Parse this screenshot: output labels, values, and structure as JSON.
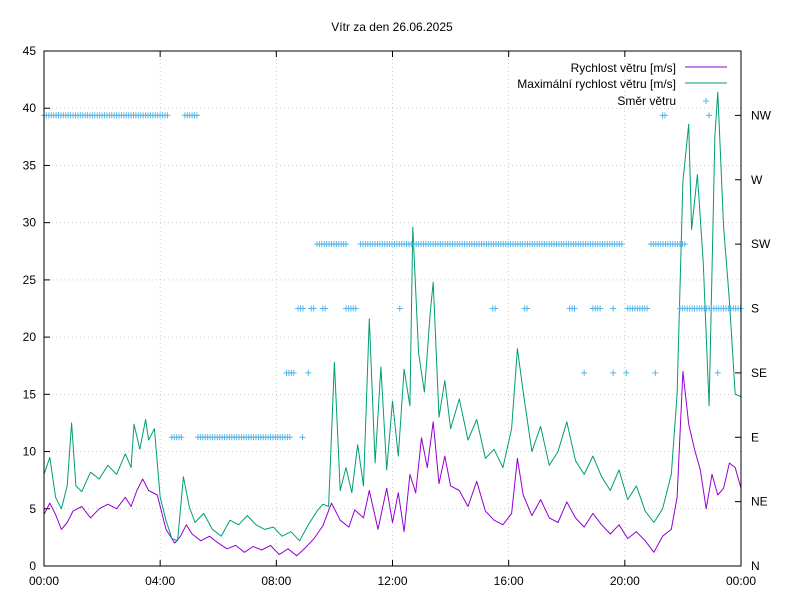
{
  "chart_data": {
    "type": "line",
    "title": "Vítr za den 26.06.2025",
    "x_ticks": [
      "00:00",
      "04:00",
      "08:00",
      "12:00",
      "16:00",
      "20:00",
      "00:00"
    ],
    "xlim_hours": [
      0,
      24
    ],
    "y_ticks": [
      "0",
      "5",
      "10",
      "15",
      "20",
      "25",
      "30",
      "35",
      "40",
      "45"
    ],
    "ylim": [
      0,
      45
    ],
    "y2_ticks": [
      "N",
      "NE",
      "E",
      "SE",
      "S",
      "SW",
      "W",
      "NW"
    ],
    "grid": true,
    "legend_position": "top-right",
    "series": [
      {
        "name": "Rychlost větru [m/s]",
        "color": "#9400d3",
        "points": [
          [
            0,
            4.5
          ],
          [
            0.2,
            5.5
          ],
          [
            0.4,
            4.5
          ],
          [
            0.6,
            3.2
          ],
          [
            0.8,
            3.8
          ],
          [
            1.0,
            4.8
          ],
          [
            1.3,
            5.2
          ],
          [
            1.6,
            4.2
          ],
          [
            1.9,
            5.0
          ],
          [
            2.2,
            5.4
          ],
          [
            2.5,
            5.0
          ],
          [
            2.8,
            6.0
          ],
          [
            3.0,
            5.2
          ],
          [
            3.2,
            6.6
          ],
          [
            3.4,
            7.6
          ],
          [
            3.6,
            6.6
          ],
          [
            3.9,
            6.2
          ],
          [
            4.2,
            3.2
          ],
          [
            4.5,
            2.0
          ],
          [
            4.7,
            2.6
          ],
          [
            4.9,
            3.6
          ],
          [
            5.1,
            2.8
          ],
          [
            5.4,
            2.2
          ],
          [
            5.7,
            2.6
          ],
          [
            6.0,
            2.0
          ],
          [
            6.3,
            1.5
          ],
          [
            6.6,
            1.8
          ],
          [
            6.9,
            1.2
          ],
          [
            7.2,
            1.7
          ],
          [
            7.5,
            1.4
          ],
          [
            7.8,
            1.8
          ],
          [
            8.1,
            1.0
          ],
          [
            8.4,
            1.5
          ],
          [
            8.7,
            0.9
          ],
          [
            9.0,
            1.6
          ],
          [
            9.3,
            2.4
          ],
          [
            9.6,
            3.5
          ],
          [
            9.9,
            5.5
          ],
          [
            10.2,
            4.0
          ],
          [
            10.5,
            3.4
          ],
          [
            10.7,
            4.9
          ],
          [
            11.0,
            4.2
          ],
          [
            11.2,
            6.6
          ],
          [
            11.5,
            3.2
          ],
          [
            11.8,
            6.8
          ],
          [
            12.0,
            3.8
          ],
          [
            12.2,
            6.4
          ],
          [
            12.4,
            3.0
          ],
          [
            12.6,
            8.0
          ],
          [
            12.8,
            6.4
          ],
          [
            13.0,
            11.2
          ],
          [
            13.2,
            8.6
          ],
          [
            13.4,
            12.6
          ],
          [
            13.6,
            7.2
          ],
          [
            13.8,
            9.6
          ],
          [
            14.0,
            7.0
          ],
          [
            14.3,
            6.6
          ],
          [
            14.6,
            5.2
          ],
          [
            14.9,
            7.4
          ],
          [
            15.2,
            4.8
          ],
          [
            15.5,
            4.0
          ],
          [
            15.8,
            3.6
          ],
          [
            16.1,
            4.6
          ],
          [
            16.3,
            9.4
          ],
          [
            16.5,
            6.2
          ],
          [
            16.8,
            4.4
          ],
          [
            17.1,
            5.8
          ],
          [
            17.4,
            4.2
          ],
          [
            17.7,
            3.8
          ],
          [
            18.0,
            5.6
          ],
          [
            18.3,
            4.2
          ],
          [
            18.6,
            3.4
          ],
          [
            18.9,
            4.6
          ],
          [
            19.2,
            3.6
          ],
          [
            19.5,
            2.8
          ],
          [
            19.8,
            3.6
          ],
          [
            20.1,
            2.4
          ],
          [
            20.4,
            3.0
          ],
          [
            20.7,
            2.2
          ],
          [
            21.0,
            1.2
          ],
          [
            21.3,
            2.6
          ],
          [
            21.6,
            3.2
          ],
          [
            21.8,
            6.0
          ],
          [
            22.0,
            17.0
          ],
          [
            22.2,
            12.4
          ],
          [
            22.4,
            10.2
          ],
          [
            22.6,
            8.4
          ],
          [
            22.8,
            5.0
          ],
          [
            23.0,
            8.0
          ],
          [
            23.2,
            6.2
          ],
          [
            23.4,
            6.8
          ],
          [
            23.6,
            9.0
          ],
          [
            23.8,
            8.6
          ],
          [
            24.0,
            6.8
          ]
        ]
      },
      {
        "name": "Maximální rychlost větru [m/s]",
        "color": "#009e73",
        "points": [
          [
            0,
            8.0
          ],
          [
            0.2,
            9.5
          ],
          [
            0.4,
            6.0
          ],
          [
            0.6,
            5.0
          ],
          [
            0.8,
            7.0
          ],
          [
            0.95,
            12.5
          ],
          [
            1.1,
            7.0
          ],
          [
            1.3,
            6.5
          ],
          [
            1.6,
            8.2
          ],
          [
            1.9,
            7.6
          ],
          [
            2.2,
            8.8
          ],
          [
            2.5,
            8.0
          ],
          [
            2.8,
            9.8
          ],
          [
            3.0,
            8.6
          ],
          [
            3.1,
            12.4
          ],
          [
            3.3,
            10.2
          ],
          [
            3.5,
            12.8
          ],
          [
            3.6,
            11.0
          ],
          [
            3.8,
            12.0
          ],
          [
            4.0,
            6.0
          ],
          [
            4.2,
            4.0
          ],
          [
            4.4,
            2.4
          ],
          [
            4.6,
            2.2
          ],
          [
            4.8,
            7.8
          ],
          [
            5.0,
            5.2
          ],
          [
            5.2,
            3.8
          ],
          [
            5.5,
            4.6
          ],
          [
            5.8,
            3.2
          ],
          [
            6.1,
            2.6
          ],
          [
            6.4,
            4.0
          ],
          [
            6.7,
            3.6
          ],
          [
            7.0,
            4.4
          ],
          [
            7.3,
            3.6
          ],
          [
            7.6,
            3.2
          ],
          [
            7.9,
            3.4
          ],
          [
            8.2,
            2.6
          ],
          [
            8.5,
            3.0
          ],
          [
            8.8,
            2.2
          ],
          [
            9.1,
            3.6
          ],
          [
            9.4,
            4.8
          ],
          [
            9.6,
            5.4
          ],
          [
            9.8,
            5.2
          ],
          [
            10.0,
            17.8
          ],
          [
            10.2,
            6.6
          ],
          [
            10.4,
            8.6
          ],
          [
            10.6,
            6.4
          ],
          [
            10.8,
            10.6
          ],
          [
            11.0,
            7.0
          ],
          [
            11.2,
            21.6
          ],
          [
            11.4,
            9.0
          ],
          [
            11.6,
            17.4
          ],
          [
            11.8,
            8.4
          ],
          [
            12.0,
            14.4
          ],
          [
            12.2,
            9.6
          ],
          [
            12.4,
            17.2
          ],
          [
            12.6,
            14.0
          ],
          [
            12.7,
            29.6
          ],
          [
            12.9,
            18.6
          ],
          [
            13.1,
            15.2
          ],
          [
            13.3,
            22.2
          ],
          [
            13.4,
            24.8
          ],
          [
            13.6,
            13.0
          ],
          [
            13.8,
            16.2
          ],
          [
            14.0,
            12.0
          ],
          [
            14.3,
            14.6
          ],
          [
            14.6,
            11.0
          ],
          [
            14.9,
            12.8
          ],
          [
            15.2,
            9.4
          ],
          [
            15.5,
            10.2
          ],
          [
            15.8,
            8.6
          ],
          [
            16.1,
            12.0
          ],
          [
            16.3,
            19.0
          ],
          [
            16.5,
            15.2
          ],
          [
            16.8,
            10.0
          ],
          [
            17.1,
            12.2
          ],
          [
            17.4,
            8.8
          ],
          [
            17.7,
            10.0
          ],
          [
            18.0,
            12.6
          ],
          [
            18.3,
            9.2
          ],
          [
            18.6,
            8.0
          ],
          [
            18.9,
            9.6
          ],
          [
            19.2,
            7.8
          ],
          [
            19.5,
            6.6
          ],
          [
            19.8,
            8.4
          ],
          [
            20.1,
            5.8
          ],
          [
            20.4,
            7.0
          ],
          [
            20.7,
            4.8
          ],
          [
            21.0,
            3.8
          ],
          [
            21.3,
            5.0
          ],
          [
            21.6,
            8.0
          ],
          [
            21.8,
            15.0
          ],
          [
            22.0,
            33.6
          ],
          [
            22.2,
            38.6
          ],
          [
            22.3,
            29.4
          ],
          [
            22.5,
            34.2
          ],
          [
            22.7,
            26.6
          ],
          [
            22.9,
            14.0
          ],
          [
            23.1,
            37.6
          ],
          [
            23.2,
            41.4
          ],
          [
            23.4,
            29.6
          ],
          [
            23.6,
            23.2
          ],
          [
            23.8,
            15.0
          ],
          [
            24.0,
            14.8
          ]
        ]
      },
      {
        "name": "Směr větru",
        "color": "#56b4e9",
        "marker": "+",
        "direction_levels": [
          "N",
          "NE",
          "E",
          "SE",
          "S",
          "SW",
          "W",
          "NW"
        ],
        "observations": [
          {
            "direction": "NW",
            "from": 0.0,
            "to": 4.3
          },
          {
            "direction": "NW",
            "from": 4.85,
            "to": 5.3
          },
          {
            "direction": "E",
            "from": 4.4,
            "to": 4.8
          },
          {
            "direction": "E",
            "from": 5.3,
            "to": 8.5
          },
          {
            "direction": "E",
            "at": 8.9
          },
          {
            "direction": "SE",
            "from": 8.35,
            "to": 8.6
          },
          {
            "direction": "SE",
            "at": 9.1
          },
          {
            "direction": "S",
            "from": 8.75,
            "to": 8.95
          },
          {
            "direction": "S",
            "from": 9.2,
            "to": 9.35
          },
          {
            "direction": "S",
            "from": 9.6,
            "to": 9.75
          },
          {
            "direction": "S",
            "from": 10.4,
            "to": 10.75
          },
          {
            "direction": "SW",
            "from": 9.4,
            "to": 10.4
          },
          {
            "direction": "SW",
            "from": 10.9,
            "to": 19.9
          },
          {
            "direction": "SW",
            "from": 20.9,
            "to": 22.1
          },
          {
            "direction": "S",
            "at": 12.25
          },
          {
            "direction": "S",
            "from": 15.45,
            "to": 15.6
          },
          {
            "direction": "S",
            "from": 16.55,
            "to": 16.7
          },
          {
            "direction": "S",
            "from": 18.1,
            "to": 18.3
          },
          {
            "direction": "S",
            "from": 18.9,
            "to": 19.2
          },
          {
            "direction": "S",
            "at": 19.6
          },
          {
            "direction": "S",
            "from": 20.1,
            "to": 20.8
          },
          {
            "direction": "SE",
            "at": 18.6
          },
          {
            "direction": "SE",
            "at": 19.6
          },
          {
            "direction": "SE",
            "at": 20.05
          },
          {
            "direction": "SE",
            "at": 21.05
          },
          {
            "direction": "SE",
            "at": 23.2
          },
          {
            "direction": "S",
            "from": 21.9,
            "to": 24.0
          },
          {
            "direction": "NW",
            "from": 21.3,
            "to": 21.45
          },
          {
            "direction": "NW",
            "at": 22.9
          }
        ]
      }
    ]
  }
}
